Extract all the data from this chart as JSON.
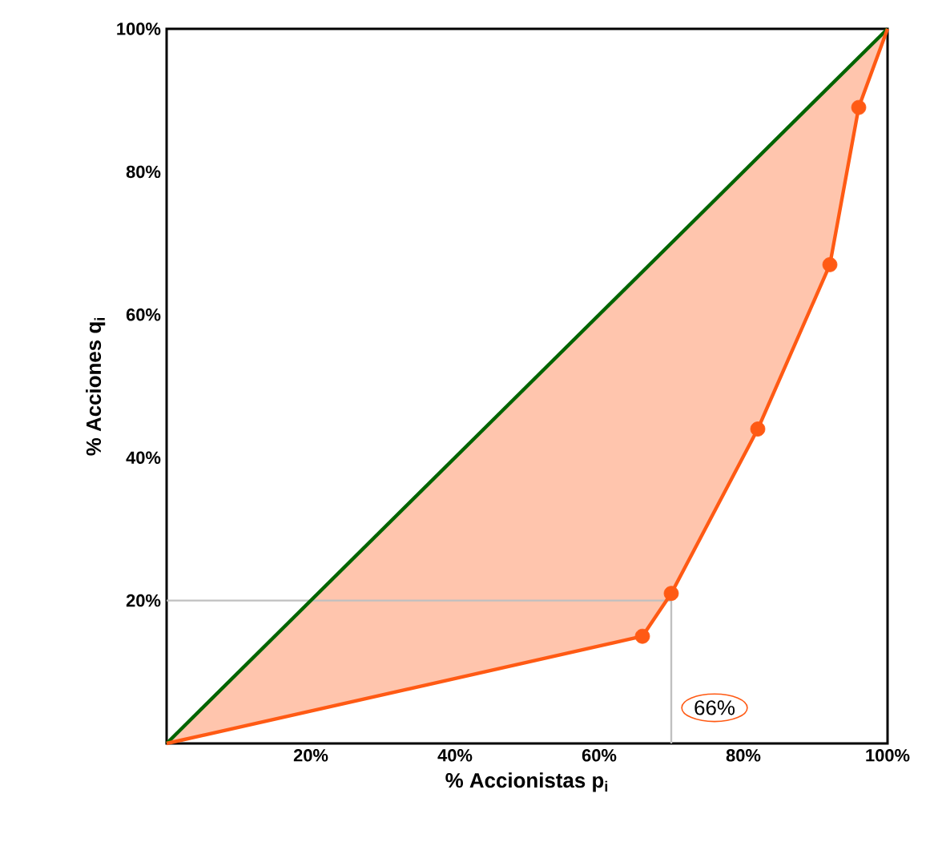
{
  "chart_data": {
    "type": "line",
    "xlabel": "% Accionistas p$_{i}$",
    "ylabel": "% Acciones q$_{i}$",
    "xlim": [
      0,
      100
    ],
    "ylim": [
      0,
      100
    ],
    "xticks": [
      {
        "value": 20,
        "label": "20%"
      },
      {
        "value": 40,
        "label": "40%"
      },
      {
        "value": 60,
        "label": "60%"
      },
      {
        "value": 80,
        "label": "80%"
      },
      {
        "value": 100,
        "label": "100%"
      }
    ],
    "yticks": [
      {
        "value": 20,
        "label": "20%"
      },
      {
        "value": 40,
        "label": "40%"
      },
      {
        "value": 60,
        "label": "60%"
      },
      {
        "value": 80,
        "label": "80%"
      },
      {
        "value": 100,
        "label": "100%"
      }
    ],
    "series": [
      {
        "color": "#006400",
        "x": [
          0,
          100
        ],
        "values": [
          0,
          100
        ]
      },
      {
        "color": "#ff5a14",
        "x": [
          0,
          66,
          70,
          82,
          92,
          96,
          100
        ],
        "values": [
          0,
          15,
          21,
          44,
          67,
          89,
          100
        ],
        "lower": [
          0,
          15,
          21,
          44,
          67,
          89,
          100
        ],
        "upper": [
          0,
          66,
          70,
          82,
          92,
          96,
          100
        ]
      },
      {
        "type": "scatter",
        "color": "#ff5a14",
        "marker": "circle",
        "x": [
          66,
          70,
          82,
          92,
          96
        ],
        "values": [
          15,
          21,
          44,
          67,
          89
        ]
      }
    ],
    "ref_lines": [
      {
        "axis": "x",
        "value": 70,
        "color": "#c0c0c0"
      },
      {
        "axis": "y",
        "value": 20,
        "color": "#c0c0c0"
      }
    ],
    "annotations": [
      "66%"
    ],
    "grid": false
  }
}
